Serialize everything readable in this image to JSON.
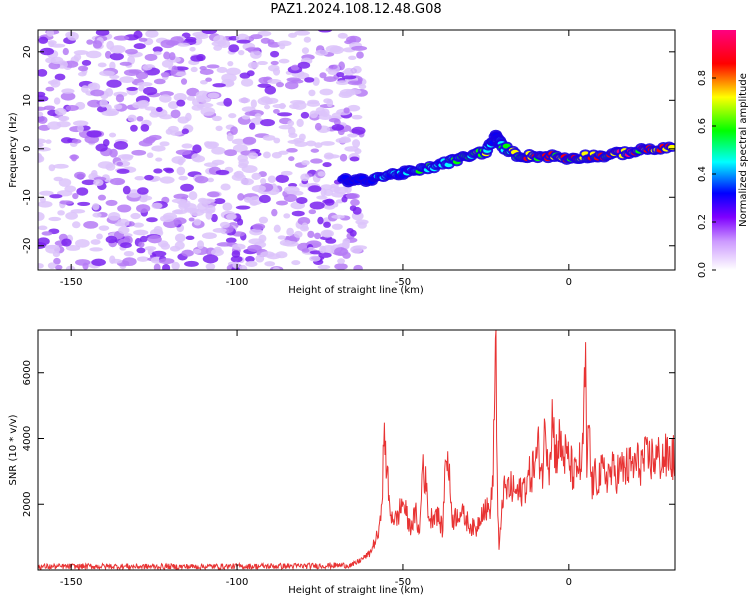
{
  "chart_data": [
    {
      "id": "spectrogram",
      "type": "heatmap",
      "title": "PAZ1.2024.108.12.48.G08",
      "xlabel": "Height of straight line (km)",
      "ylabel": "Frequency (Hz)",
      "xlim": [
        -160,
        32
      ],
      "ylim": [
        -25,
        24.5
      ],
      "xticks": [
        -150,
        -100,
        -50,
        0
      ],
      "yticks": [
        -20,
        -10,
        0,
        10,
        20
      ],
      "noise_region_x": [
        -160,
        -62
      ],
      "signal_ridge": {
        "x": [
          -68,
          -62,
          -55,
          -50,
          -45,
          -40,
          -35,
          -30,
          -25,
          -22,
          -20,
          -15,
          -10,
          -5,
          0,
          5,
          10,
          15,
          20,
          25,
          32
        ],
        "freq": [
          -6.5,
          -6.5,
          -5.5,
          -5,
          -4.5,
          -3.5,
          -2.5,
          -1.5,
          -0.5,
          2.5,
          0.5,
          -1.5,
          -1.5,
          -1.5,
          -2,
          -1.5,
          -1.5,
          -1,
          -0.5,
          0,
          0
        ],
        "amplitude": [
          0.35,
          0.4,
          0.45,
          0.45,
          0.5,
          0.55,
          0.6,
          0.65,
          0.7,
          0.4,
          0.55,
          0.75,
          0.8,
          0.8,
          0.8,
          0.75,
          0.8,
          0.85,
          0.9,
          0.92,
          0.95
        ]
      },
      "colorbar": {
        "label": "Normalized spectral amplitude",
        "ticks": [
          "0.0",
          "0.2",
          "0.4",
          "0.6",
          "0.8"
        ],
        "stops": [
          "#ffffff",
          "#cc99ff",
          "#7f00ff",
          "#0000ff",
          "#00ffff",
          "#00ff00",
          "#ffff00",
          "#ff0000",
          "#ff0080"
        ]
      }
    },
    {
      "id": "snr",
      "type": "line",
      "title": "",
      "xlabel": "Height of straight line (km)",
      "ylabel": "SNR (10 * v/v)",
      "xlim": [
        -160,
        32
      ],
      "ylim": [
        0,
        7300
      ],
      "xticks": [
        -150,
        -100,
        -50,
        0
      ],
      "yticks": [
        2000,
        4000,
        6000
      ],
      "color": "#e83333",
      "series": [
        {
          "x": [
            -160,
            -140,
            -120,
            -100,
            -80,
            -65,
            -60,
            -57,
            -55.5,
            -54,
            -52,
            -50,
            -48,
            -46,
            -45,
            -44,
            -42,
            -40,
            -38,
            -37,
            -35,
            -33,
            -30,
            -28,
            -26,
            -24,
            -23,
            -22,
            -21.5,
            -21,
            -20,
            -18,
            -15,
            -12,
            -10,
            -9,
            -8,
            -7,
            -6,
            -5,
            -4,
            -3,
            -2,
            0,
            2,
            3,
            4,
            5,
            5.5,
            6,
            6.5,
            7,
            8,
            10,
            15,
            20,
            25,
            32
          ],
          "y": [
            100,
            110,
            100,
            110,
            120,
            150,
            500,
            1200,
            4050,
            1800,
            1500,
            2100,
            1300,
            1700,
            1000,
            3400,
            1500,
            1800,
            1200,
            3900,
            1500,
            1800,
            1400,
            1200,
            1900,
            1800,
            2400,
            7250,
            2000,
            500,
            2300,
            2500,
            2300,
            2800,
            3300,
            3700,
            2900,
            4500,
            3200,
            4700,
            3500,
            3900,
            3600,
            3300,
            2800,
            3300,
            3000,
            6400,
            2300,
            5000,
            3100,
            2600,
            2800,
            2900,
            3000,
            3200,
            3400,
            3400
          ]
        }
      ]
    }
  ]
}
